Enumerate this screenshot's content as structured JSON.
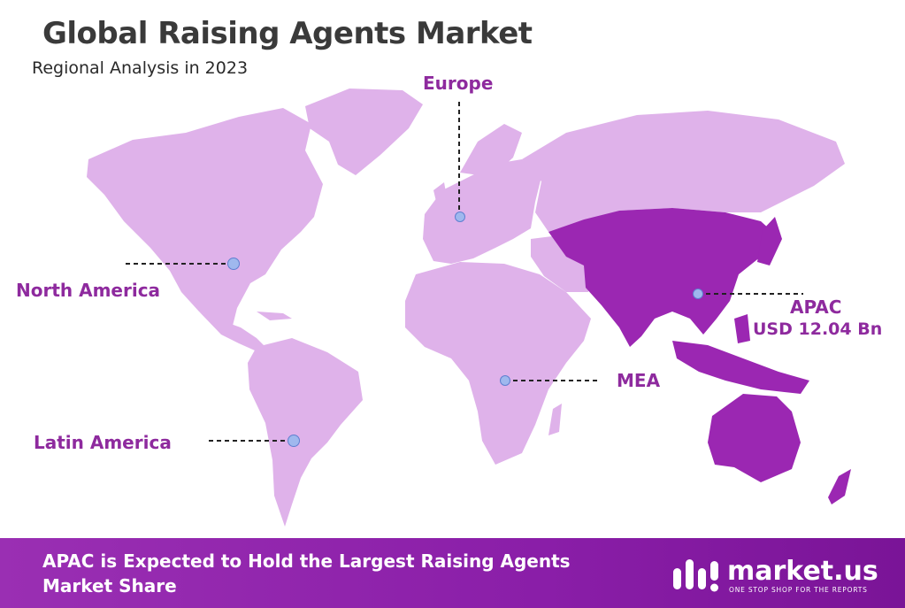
{
  "title": "Global Raising Agents Market",
  "subtitle": "Regional Analysis in 2023",
  "regions": {
    "europe": {
      "label": "Europe"
    },
    "north_america": {
      "label": "North America"
    },
    "latin_america": {
      "label": "Latin America"
    },
    "mea": {
      "label": "MEA"
    },
    "apac": {
      "label": "APAC",
      "value": "USD 12.04 Bn"
    }
  },
  "footer": {
    "headline": "APAC is Expected to Hold the Largest Raising Agents Market Share"
  },
  "logo": {
    "name": "market.us",
    "tagline": "ONE STOP SHOP FOR THE REPORTS"
  },
  "colors": {
    "land": "#dfb2ea",
    "apac_highlight": "#9b27b2",
    "label": "#8e2a9e",
    "marker": "#9fb8ee",
    "footer": "#8a1ea8"
  },
  "icons": [
    "market-us-logo-icon",
    "location-marker-icon"
  ]
}
